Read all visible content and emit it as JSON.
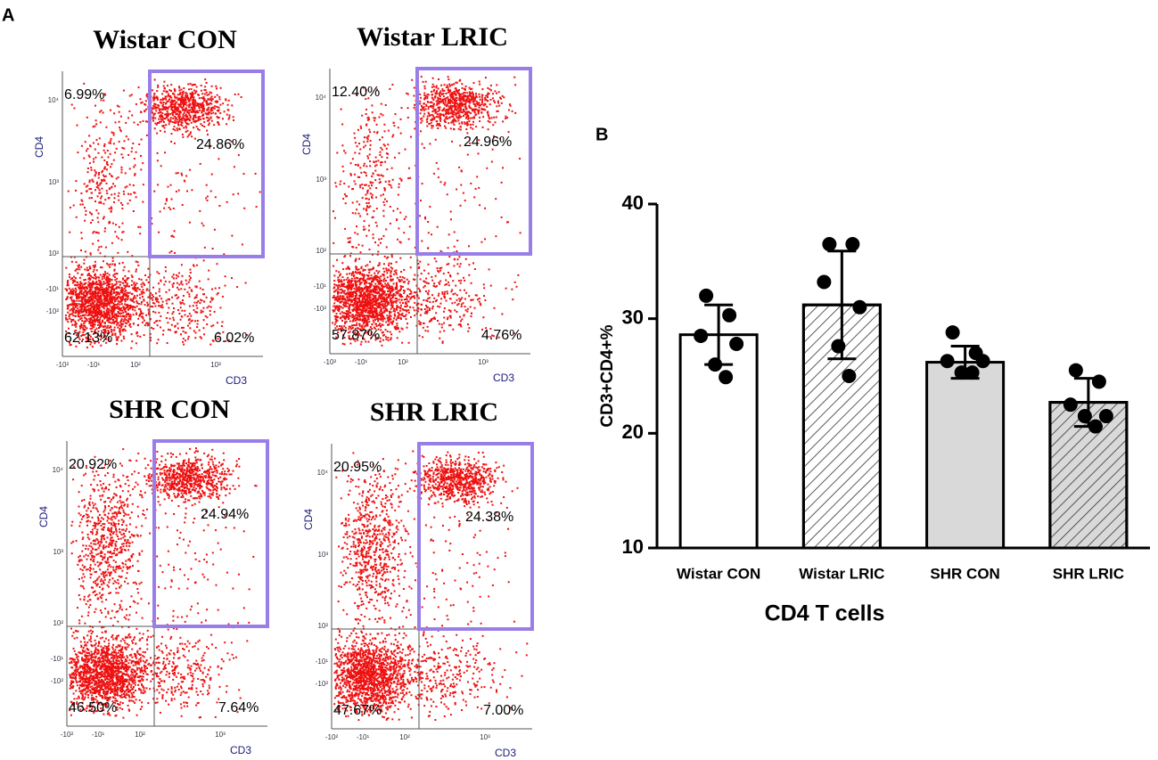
{
  "panel_a": {
    "label": "A",
    "xlabel": "CD3",
    "ylabel": "CD4",
    "xticks": [
      "-10²",
      "-10¹",
      "10²",
      "10³"
    ],
    "yticks": [
      "10⁴",
      "10³",
      "10²",
      "-10¹",
      "-10²"
    ],
    "plots": [
      {
        "title": "Wistar CON",
        "upper_left": "6.99%",
        "upper_right": "24.86%",
        "lower_left": "62.13%",
        "lower_right": "6.02%"
      },
      {
        "title": "Wistar LRIC",
        "upper_left": "12.40%",
        "upper_right": "24.96%",
        "lower_left": "57.87%",
        "lower_right": "4.76%"
      },
      {
        "title": "SHR CON",
        "upper_left": "20.92%",
        "upper_right": "24.94%",
        "lower_left": "46.50%",
        "lower_right": "7.64%"
      },
      {
        "title": "SHR LRIC",
        "upper_left": "20.95%",
        "upper_right": "24.38%",
        "lower_left": "47.67%",
        "lower_right": "7.00%"
      }
    ]
  },
  "chart_data": {
    "type": "bar",
    "panel_label": "B",
    "xlabel": "CD4 T cells",
    "ylabel": "CD3+CD4+%",
    "categories": [
      "Wistar CON",
      "Wistar LRIC",
      "SHR CON",
      "SHR LRIC"
    ],
    "values": [
      28.6,
      31.2,
      26.2,
      22.7
    ],
    "errors": [
      2.6,
      4.7,
      1.4,
      2.1
    ],
    "points": [
      [
        32.0,
        30.3,
        28.5,
        27.8,
        26.0,
        24.9
      ],
      [
        36.5,
        36.5,
        33.2,
        31.0,
        27.6,
        25.0
      ],
      [
        28.8,
        27.0,
        26.3,
        26.3,
        25.3,
        25.3
      ],
      [
        25.5,
        24.5,
        22.5,
        21.5,
        21.5,
        20.6
      ]
    ],
    "colors": [
      "#ffffff",
      "#ffffff",
      "#d9d9d9",
      "#d9d9d9"
    ],
    "hatched": [
      false,
      true,
      false,
      true
    ],
    "ylim": [
      10,
      40
    ],
    "yticks": [
      10,
      20,
      30,
      40
    ]
  }
}
